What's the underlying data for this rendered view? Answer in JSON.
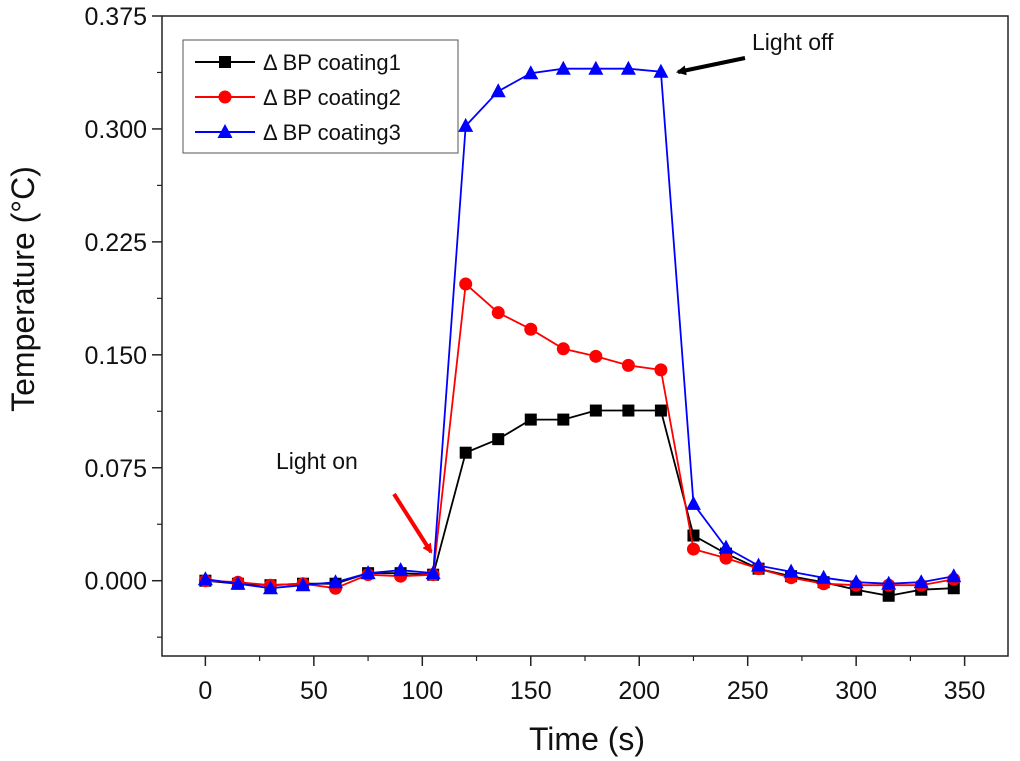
{
  "chart_data": {
    "type": "line",
    "title": "",
    "xlabel": "Time (s)",
    "ylabel": "Temperature (°C)",
    "xlim": [
      -20,
      370
    ],
    "ylim": [
      -0.05,
      0.375
    ],
    "xticks": [
      0,
      50,
      100,
      150,
      200,
      250,
      300,
      350
    ],
    "yticks": [
      0.0,
      0.075,
      0.15,
      0.225,
      0.3,
      0.375
    ],
    "xtick_labels": [
      "0",
      "50",
      "100",
      "150",
      "200",
      "250",
      "300",
      "350"
    ],
    "ytick_labels": [
      "0.000",
      "0.075",
      "0.150",
      "0.225",
      "0.300",
      "0.375"
    ],
    "x": [
      0,
      15,
      30,
      45,
      60,
      75,
      90,
      105,
      120,
      135,
      150,
      165,
      180,
      195,
      210,
      225,
      240,
      255,
      270,
      285,
      300,
      315,
      330,
      345
    ],
    "legend_position": "top-left",
    "series": [
      {
        "name": "Δ BP coating1",
        "color": "#000000",
        "marker": "square",
        "values": [
          0.0,
          -0.002,
          -0.003,
          -0.002,
          -0.002,
          0.005,
          0.005,
          0.004,
          0.085,
          0.094,
          0.107,
          0.107,
          0.113,
          0.113,
          0.113,
          0.03,
          0.018,
          0.008,
          0.003,
          -0.001,
          -0.006,
          -0.01,
          -0.006,
          -0.005
        ]
      },
      {
        "name": "Δ BP coating2",
        "color": "#ff0000",
        "marker": "circle",
        "values": [
          0.0,
          -0.001,
          -0.003,
          -0.002,
          -0.005,
          0.004,
          0.003,
          0.004,
          0.197,
          0.178,
          0.167,
          0.154,
          0.149,
          0.143,
          0.14,
          0.021,
          0.015,
          0.008,
          0.002,
          -0.002,
          -0.003,
          -0.003,
          -0.003,
          0.001
        ]
      },
      {
        "name": "Δ BP coating3",
        "color": "#0000ff",
        "marker": "triangle",
        "values": [
          0.001,
          -0.002,
          -0.005,
          -0.003,
          -0.001,
          0.005,
          0.007,
          0.005,
          0.302,
          0.325,
          0.337,
          0.34,
          0.34,
          0.34,
          0.338,
          0.051,
          0.022,
          0.01,
          0.006,
          0.002,
          -0.001,
          -0.002,
          -0.001,
          0.003
        ]
      }
    ],
    "annotations": [
      {
        "text": "Light on",
        "color": "#ff0000",
        "target_x": 105,
        "target_y": 0.004
      },
      {
        "text": "Light off",
        "color": "#000000",
        "target_x": 210,
        "target_y": 0.338
      }
    ]
  }
}
